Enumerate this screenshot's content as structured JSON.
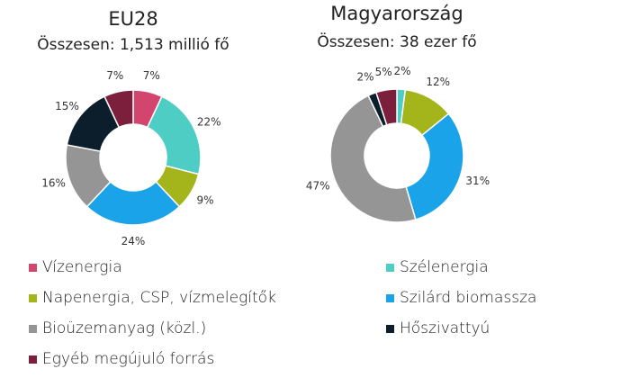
{
  "chart_data": [
    {
      "type": "pie",
      "title": "EU28",
      "subtitle": "Összesen: 1,513 millió fő",
      "categories": [
        "Vízenergia",
        "Szélenergia",
        "Napenergia, CSP, vízmelegítők",
        "Szilárd biomassza",
        "Bioüzemanyag (közl.)",
        "Hőszivattyú",
        "Egyéb megújuló forrás"
      ],
      "values": [
        7,
        22,
        9,
        24,
        16,
        15,
        7
      ],
      "labels": [
        "7%",
        "22%",
        "9%",
        "24%",
        "16%",
        "15%",
        "7%"
      ]
    },
    {
      "type": "pie",
      "title": "Magyarország",
      "subtitle": "Összesen: 38 ezer fő",
      "categories": [
        "Vízenergia",
        "Szélenergia",
        "Napenergia, CSP, vízmelegítők",
        "Szilárd biomassza",
        "Bioüzemanyag (közl.)",
        "Hőszivattyú",
        "Egyéb megújuló forrás"
      ],
      "values": [
        0,
        2,
        12,
        31,
        47,
        2,
        5
      ],
      "labels": [
        "",
        "2%",
        "12%",
        "31%",
        "47%",
        "2%",
        "5%"
      ]
    }
  ],
  "colors": {
    "Vízenergia": "#d1456f",
    "Szélenergia": "#4ecdc4",
    "Napenergia, CSP, vízmelegítők": "#a3b51a",
    "Szilárd biomassza": "#1aa3e8",
    "Bioüzemanyag (közl.)": "#959595",
    "Hőszivattyú": "#0c1d2b",
    "Egyéb megújuló forrás": "#7c1f3d"
  },
  "legend": [
    {
      "label": "Vízenergia",
      "color": "#d1456f"
    },
    {
      "label": "Szélenergia",
      "color": "#4ecdc4"
    },
    {
      "label": "Napenergia, CSP, vízmelegítők",
      "color": "#a3b51a"
    },
    {
      "label": "Szilárd biomassza",
      "color": "#1aa3e8"
    },
    {
      "label": "Bioüzemanyag (közl.)",
      "color": "#959595"
    },
    {
      "label": "Hőszivattyú",
      "color": "#0c1d2b"
    },
    {
      "label": "Egyéb megújuló forrás",
      "color": "#7c1f3d"
    }
  ]
}
